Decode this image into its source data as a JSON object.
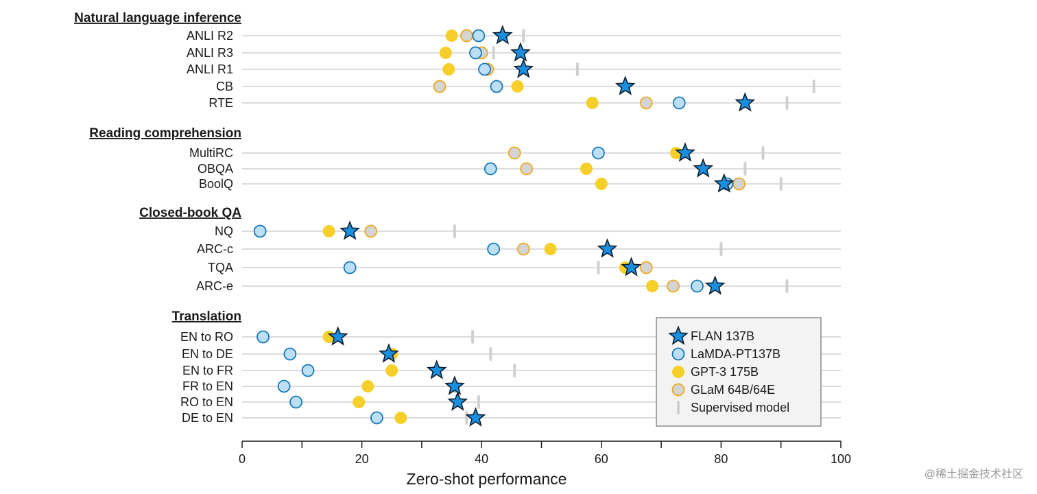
{
  "chart_data": {
    "type": "scatter",
    "xlabel": "Zero-shot performance",
    "xlim": [
      0,
      100
    ],
    "xticks": [
      0,
      20,
      40,
      60,
      80,
      100
    ],
    "grid": true,
    "legend_position": "bottom-right",
    "colors": {
      "flan": "#1a8fe0",
      "lamda_fill": "#bcdff5",
      "lamda_edge": "#1577b8",
      "gpt3": "#f7cf2a",
      "glam_fill": "#d4d4d4",
      "glam_edge": "#f0a91e",
      "supervised": "#d0d0d0",
      "rowline": "#dcdcdc"
    },
    "series": [
      {
        "key": "flan",
        "name": "FLAN 137B",
        "marker": "star"
      },
      {
        "key": "lamda",
        "name": "LaMDA-PT137B",
        "marker": "circle-outline"
      },
      {
        "key": "gpt3",
        "name": "GPT-3 175B",
        "marker": "circle"
      },
      {
        "key": "glam",
        "name": "GLaM 64B/64E",
        "marker": "circle-outline-gold"
      },
      {
        "key": "supervised",
        "name": "Supervised model",
        "marker": "tick"
      }
    ],
    "groups": [
      {
        "title": "Natural language inference",
        "rows": [
          {
            "label": "ANLI R2",
            "lamda": 39.5,
            "gpt3": 35,
            "glam": 37.5,
            "flan": 43.5,
            "supervised": 47
          },
          {
            "label": "ANLI R3",
            "lamda": 39,
            "gpt3": 34,
            "glam": 40,
            "flan": 46.5,
            "supervised": 42
          },
          {
            "label": "ANLI R1",
            "lamda": 40.5,
            "gpt3": 34.5,
            "glam": 41,
            "flan": 47,
            "supervised": 56
          },
          {
            "label": "CB",
            "lamda": 42.5,
            "gpt3": 46,
            "glam": 33,
            "flan": 64,
            "supervised": 95.5
          },
          {
            "label": "RTE",
            "lamda": 73,
            "gpt3": 58.5,
            "glam": 67.5,
            "flan": 84,
            "supervised": 91
          }
        ]
      },
      {
        "title": "Reading comprehension",
        "rows": [
          {
            "label": "MultiRC",
            "lamda": 59.5,
            "gpt3": 72.5,
            "glam": 45.5,
            "flan": 74,
            "supervised": 87
          },
          {
            "label": "OBQA",
            "lamda": 41.5,
            "gpt3": 57.5,
            "glam": 47.5,
            "flan": 77,
            "supervised": 84
          },
          {
            "label": "BoolQ",
            "lamda": 81,
            "gpt3": 60,
            "glam": 83,
            "flan": 80.5,
            "supervised": 90
          }
        ]
      },
      {
        "title": "Closed-book QA",
        "rows": [
          {
            "label": "NQ",
            "lamda": 3,
            "gpt3": 14.5,
            "glam": 21.5,
            "flan": 18,
            "supervised": 35.5
          },
          {
            "label": "ARC-c",
            "lamda": 42,
            "gpt3": 51.5,
            "glam": 47,
            "flan": 61,
            "supervised": 80
          },
          {
            "label": "TQA",
            "lamda": 18,
            "gpt3": 64,
            "glam": 67.5,
            "flan": 65,
            "supervised": 59.5
          },
          {
            "label": "ARC-e",
            "lamda": 76,
            "gpt3": 68.5,
            "glam": 72,
            "flan": 79,
            "supervised": 91
          }
        ]
      },
      {
        "title": "Translation",
        "rows": [
          {
            "label": "EN to RO",
            "lamda": 3.5,
            "gpt3": 14.5,
            "glam": null,
            "flan": 16,
            "supervised": 38.5
          },
          {
            "label": "EN to DE",
            "lamda": 8,
            "gpt3": 25,
            "glam": null,
            "flan": 24.5,
            "supervised": 41.5
          },
          {
            "label": "EN to FR",
            "lamda": 11,
            "gpt3": 25,
            "glam": null,
            "flan": 32.5,
            "supervised": 45.5
          },
          {
            "label": "FR to EN",
            "lamda": 7,
            "gpt3": 21,
            "glam": null,
            "flan": 35.5,
            "supervised": 35.5
          },
          {
            "label": "RO to EN",
            "lamda": 9,
            "gpt3": 19.5,
            "glam": null,
            "flan": 36,
            "supervised": 39.5
          },
          {
            "label": "DE to EN",
            "lamda": 22.5,
            "gpt3": 26.5,
            "glam": null,
            "flan": 39,
            "supervised": 37.5
          }
        ]
      }
    ]
  },
  "watermark": "@稀土掘金技术社区"
}
